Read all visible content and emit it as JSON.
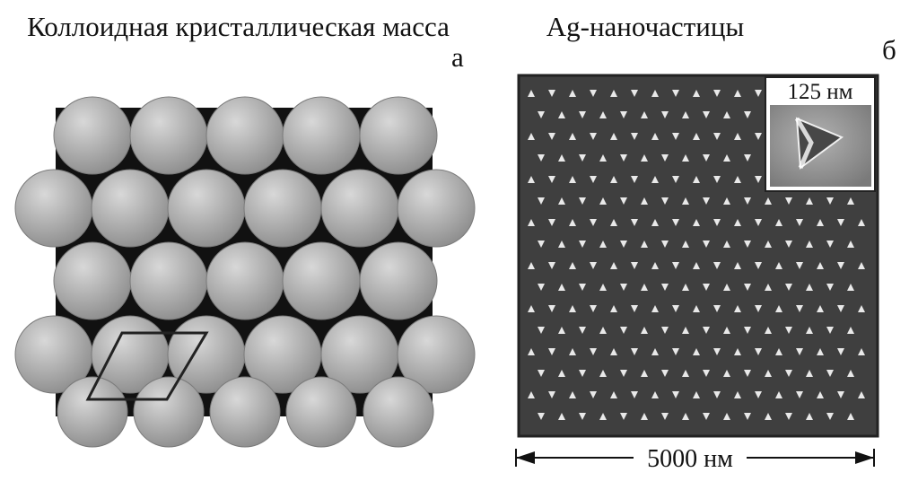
{
  "panel_a": {
    "title": "Коллоидная кристаллическая масса",
    "letter": "а"
  },
  "panel_b": {
    "title": "Ag-наночастицы",
    "letter": "б",
    "inset_label": "125 нм",
    "scale_label": "5000 нм"
  }
}
